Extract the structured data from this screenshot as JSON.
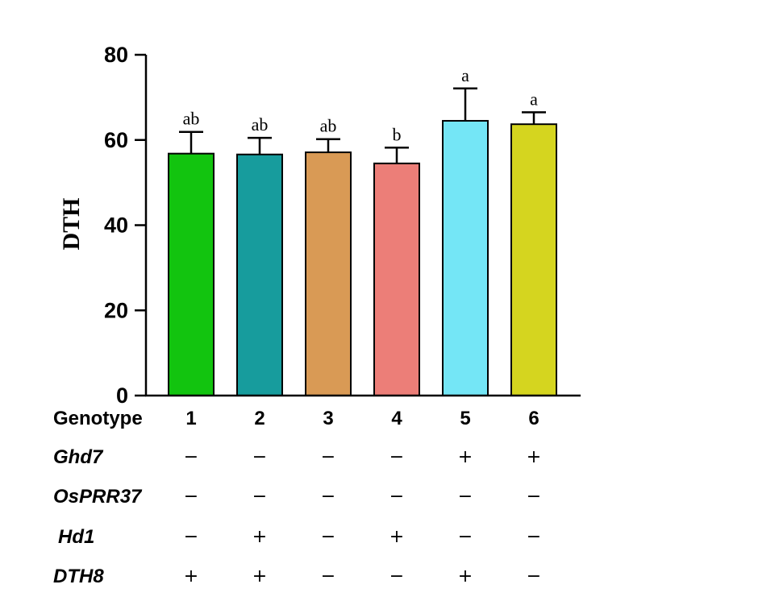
{
  "chart_data": {
    "type": "bar",
    "ylabel": "DTH",
    "ylim": [
      0,
      80
    ],
    "yticks": [
      "0",
      "20",
      "40",
      "60",
      "80"
    ],
    "category_axis_label": "Genotype",
    "categories": [
      "1",
      "2",
      "3",
      "4",
      "5",
      "6"
    ],
    "values": [
      56.8,
      56.6,
      57.1,
      54.5,
      64.5,
      63.7
    ],
    "errors": [
      5.1,
      3.9,
      3.1,
      3.7,
      7.6,
      2.8
    ],
    "significance": [
      "ab",
      "ab",
      "ab",
      "b",
      "a",
      "a"
    ],
    "colors": [
      "#12c40f",
      "#179c9d",
      "#d99a55",
      "#ec7e78",
      "#74e6f6",
      "#d5d51f"
    ],
    "grid": false,
    "legend": "none"
  },
  "genotype_table": {
    "rows": [
      {
        "label": "Ghd7",
        "marks": [
          "−",
          "−",
          "−",
          "−",
          "+",
          "+"
        ]
      },
      {
        "label": "OsPRR37",
        "marks": [
          "−",
          "−",
          "−",
          "−",
          "−",
          "−"
        ]
      },
      {
        "label": "Hd1",
        "marks": [
          "−",
          "+",
          "−",
          "+",
          "−",
          "−"
        ]
      },
      {
        "label": "DTH8",
        "marks": [
          "+",
          "+",
          "−",
          "−",
          "+",
          "−"
        ]
      }
    ]
  }
}
